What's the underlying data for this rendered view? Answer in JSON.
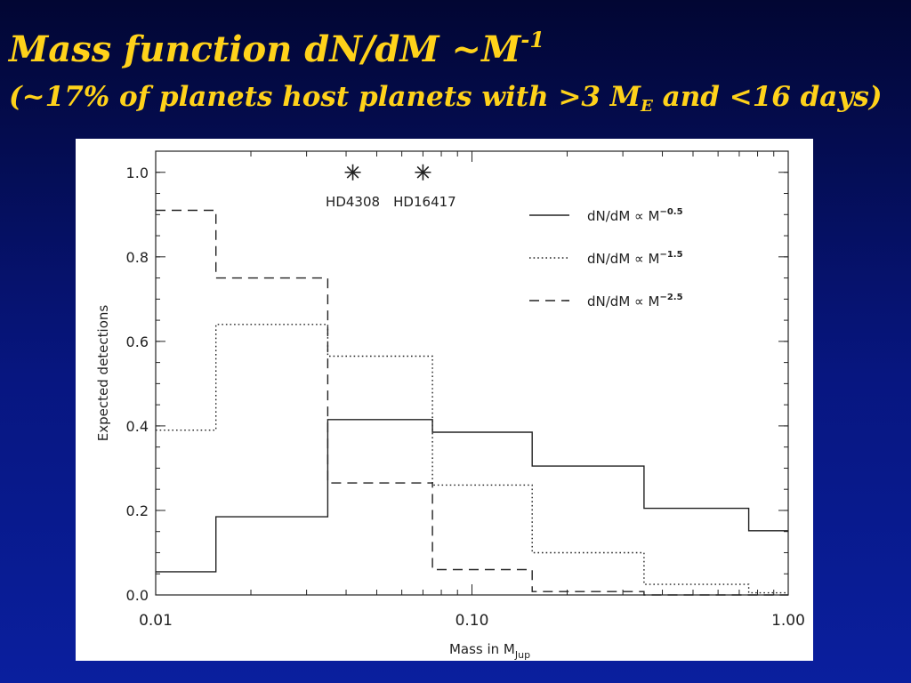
{
  "slide": {
    "title_main": "Mass function dN/dM ~M",
    "title_exp": "-1",
    "subtitle_pre": "(~17% of planets host planets with  >3 M",
    "subtitle_sub": "E",
    "subtitle_post": " and <16 days)"
  },
  "chart_data": {
    "type": "line",
    "step": true,
    "xscale": "log",
    "xlim": [
      0.01,
      1.0
    ],
    "ylim": [
      0.0,
      1.05
    ],
    "xlabel": "Mass in M",
    "xlabel_sub": "Jup",
    "ylabel": "Expected  detections",
    "x_ticks": [
      0.01,
      0.1,
      1.0
    ],
    "x_tick_labels": [
      "0.01",
      "0.10",
      "1.00"
    ],
    "y_ticks": [
      0.0,
      0.2,
      0.4,
      0.6,
      0.8,
      1.0
    ],
    "y_tick_labels": [
      "0.0",
      "0.2",
      "0.4",
      "0.6",
      "0.8",
      "1.0"
    ],
    "grid": false,
    "legend_position": "top-right",
    "bin_edges": [
      0.01,
      0.0155,
      0.035,
      0.075,
      0.155,
      0.35,
      0.75,
      1.0
    ],
    "series": [
      {
        "name": "dN/dM ∝ M",
        "name_exp": "−0.5",
        "dash": "solid",
        "values": [
          0.055,
          0.185,
          0.415,
          0.385,
          0.305,
          0.205,
          0.152
        ]
      },
      {
        "name": "dN/dM ∝ M",
        "name_exp": "−1.5",
        "dash": "dotted",
        "values": [
          0.39,
          0.64,
          0.565,
          0.26,
          0.1,
          0.025,
          0.005
        ]
      },
      {
        "name": "dN/dM ∝ M",
        "name_exp": "−2.5",
        "dash": "dashed",
        "values": [
          0.91,
          0.75,
          0.265,
          0.06,
          0.008,
          0.0,
          0.0
        ]
      }
    ],
    "markers": [
      {
        "label": "HD4308",
        "x": 0.042,
        "y": 1.0
      },
      {
        "label": "HD16417",
        "x": 0.07,
        "y": 1.0
      }
    ]
  }
}
